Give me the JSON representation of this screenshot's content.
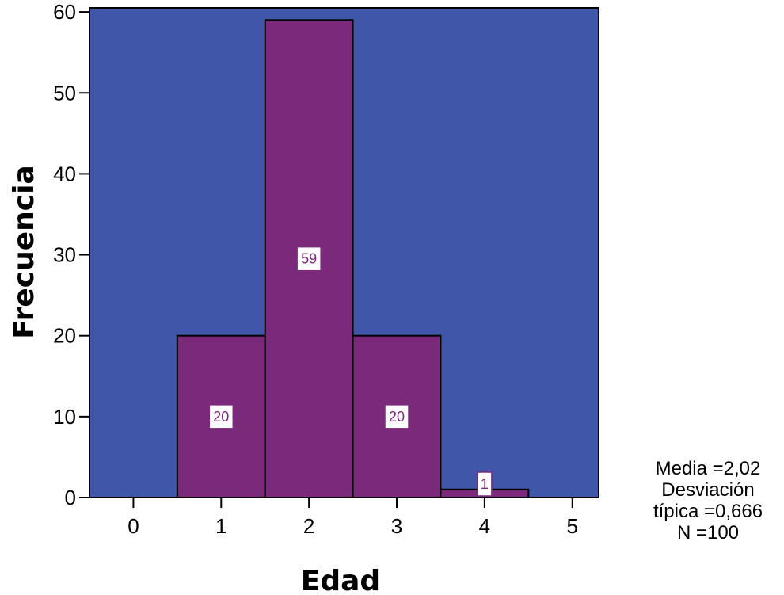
{
  "colors": {
    "plot_background": "#3f56a9",
    "bar_fill": "#7b2a7b",
    "bar_stroke": "#000000",
    "label_box": "#ffffff"
  },
  "chart_data": {
    "type": "bar",
    "title": "",
    "xlabel": "Edad",
    "ylabel": "Frecuencia",
    "xlim": [
      -0.5,
      5.3
    ],
    "ylim": [
      0,
      60.5
    ],
    "xticks": [
      0,
      1,
      2,
      3,
      4,
      5
    ],
    "yticks": [
      0,
      10,
      20,
      30,
      40,
      50,
      60
    ],
    "bins": [
      {
        "from": 0.5,
        "to": 1.5,
        "value": 20,
        "label": "20"
      },
      {
        "from": 1.5,
        "to": 2.5,
        "value": 59,
        "label": "59"
      },
      {
        "from": 2.5,
        "to": 3.5,
        "value": 20,
        "label": "20"
      },
      {
        "from": 3.5,
        "to": 4.5,
        "value": 1,
        "label": "1"
      }
    ],
    "statistics": {
      "media": "Media =2,02",
      "desviacion_1": "Desviación",
      "desviacion_2": "típica =0,666",
      "n": "N =100"
    }
  }
}
